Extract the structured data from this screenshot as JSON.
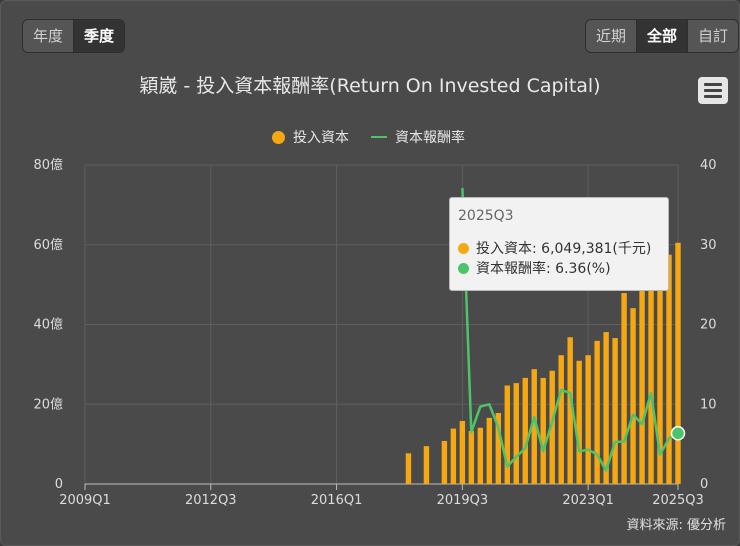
{
  "period_buttons": [
    {
      "label": "年度",
      "active": false
    },
    {
      "label": "季度",
      "active": true
    }
  ],
  "range_buttons": [
    {
      "label": "近期",
      "active": false
    },
    {
      "label": "全部",
      "active": true
    },
    {
      "label": "自訂",
      "active": false
    }
  ],
  "title": "穎崴 - 投入資本報酬率(Return On Invested Capital)",
  "menu_icon": "hamburger-menu-icon",
  "legend": [
    {
      "label": "投入資本",
      "color": "#f5a811",
      "kind": "dot"
    },
    {
      "label": "資本報酬率",
      "color": "#4cc46a",
      "kind": "line"
    }
  ],
  "tooltip": {
    "header": "2025Q3",
    "rows": [
      {
        "label": "投入資本: 6,049,381(千元)",
        "color": "#f5a811"
      },
      {
        "label": "資本報酬率: 6.36(%)",
        "color": "#4cc46a"
      }
    ]
  },
  "source": "資料來源: 優分析",
  "chart_data": {
    "type": "bar",
    "x_ticks": [
      "2009Q1",
      "2012Q3",
      "2016Q1",
      "2019Q3",
      "2023Q1",
      "2025Q3"
    ],
    "y_left_ticks": [
      "0",
      "20億",
      "40億",
      "60億",
      "80億"
    ],
    "y_right_ticks": [
      "0",
      "10",
      "20",
      "30",
      "40"
    ],
    "y_left_range": [
      0,
      80
    ],
    "y_right_range": [
      0,
      40
    ],
    "grid": true,
    "legend_position": "top-center",
    "series": [
      {
        "name": "投入資本",
        "type": "bar",
        "unit": "億",
        "color": "#f5a811",
        "points": [
          [
            "2018Q1",
            7.7
          ],
          [
            "2018Q3",
            9.5
          ],
          [
            "2019Q1",
            10.8
          ],
          [
            "2019Q2",
            13.9
          ],
          [
            "2019Q3",
            15.8
          ],
          [
            "2019Q4",
            13.3
          ],
          [
            "2020Q1",
            14.1
          ],
          [
            "2020Q2",
            16.6
          ],
          [
            "2020Q3",
            17.8
          ],
          [
            "2020Q4",
            24.7
          ],
          [
            "2021Q1",
            25.3
          ],
          [
            "2021Q2",
            26.6
          ],
          [
            "2021Q3",
            28.8
          ],
          [
            "2021Q4",
            26.6
          ],
          [
            "2022Q1",
            28.4
          ],
          [
            "2022Q2",
            32.3
          ],
          [
            "2022Q3",
            36.8
          ],
          [
            "2022Q4",
            30.9
          ],
          [
            "2023Q1",
            32.3
          ],
          [
            "2023Q2",
            35.9
          ],
          [
            "2023Q3",
            38.1
          ],
          [
            "2023Q4",
            36.6
          ],
          [
            "2024Q1",
            47.9
          ],
          [
            "2024Q2",
            44.1
          ],
          [
            "2024Q3",
            48.8
          ],
          [
            "2024Q4",
            54.2
          ],
          [
            "2025Q1",
            55.2
          ],
          [
            "2025Q2",
            57.5
          ],
          [
            "2025Q3",
            60.5
          ]
        ]
      },
      {
        "name": "資本報酬率",
        "type": "line",
        "unit": "%",
        "color": "#4cc46a",
        "points": [
          [
            "2019Q3",
            37.1
          ],
          [
            "2019Q4",
            6.5
          ],
          [
            "2020Q1",
            9.7
          ],
          [
            "2020Q2",
            10.0
          ],
          [
            "2020Q3",
            7.1
          ],
          [
            "2020Q4",
            2.2
          ],
          [
            "2021Q1",
            3.4
          ],
          [
            "2021Q2",
            4.5
          ],
          [
            "2021Q3",
            8.4
          ],
          [
            "2021Q4",
            4.1
          ],
          [
            "2022Q1",
            7.8
          ],
          [
            "2022Q2",
            11.8
          ],
          [
            "2022Q3",
            11.4
          ],
          [
            "2022Q4",
            4.1
          ],
          [
            "2023Q1",
            4.3
          ],
          [
            "2023Q2",
            3.7
          ],
          [
            "2023Q3",
            1.7
          ],
          [
            "2023Q4",
            5.3
          ],
          [
            "2024Q1",
            5.3
          ],
          [
            "2024Q2",
            8.7
          ],
          [
            "2024Q3",
            7.5
          ],
          [
            "2024Q4",
            11.4
          ],
          [
            "2025Q1",
            3.7
          ],
          [
            "2025Q2",
            5.7
          ],
          [
            "2025Q3",
            6.36
          ]
        ]
      }
    ]
  }
}
